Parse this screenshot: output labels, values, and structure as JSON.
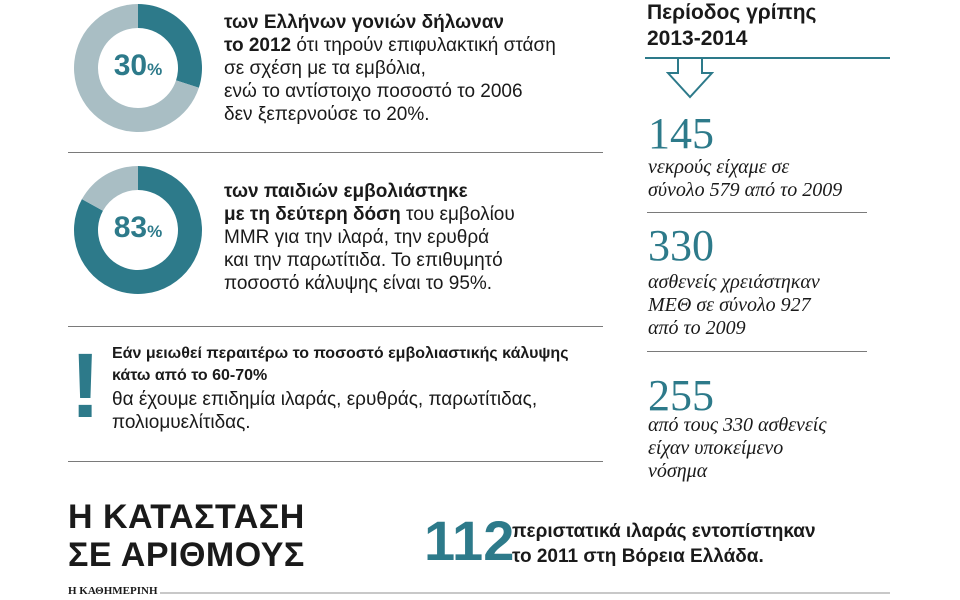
{
  "chart_data": [
    {
      "type": "pie",
      "variant": "donut",
      "values": [
        30,
        70
      ],
      "label": "30",
      "unit": "%",
      "colors": [
        "#2d7a8a",
        "#a9bec4"
      ]
    },
    {
      "type": "pie",
      "variant": "donut",
      "values": [
        83,
        17
      ],
      "label": "83",
      "unit": "%",
      "colors": [
        "#2d7a8a",
        "#a9bec4"
      ]
    }
  ],
  "stat1": {
    "bold": "των Ελλήνων γονιών δήλωναν",
    "bold2": "το 2012",
    "rest1": " ότι τηρούν επιφυλακτική στάση",
    "line3": "σε σχέση με τα εμβόλια,",
    "line4": "ενώ το αντίστοιχο ποσοστό το 2006",
    "line5": "δεν ξεπερνούσε το 20%."
  },
  "stat2": {
    "bold1": "των παιδιών εμβολιάστηκε",
    "bold2": "με τη δεύτερη δόση",
    "rest2": " του εμβολίου",
    "line3": "MMR για την ιλαρά, την ερυθρά",
    "line4": "και την παρωτίτιδα. Το επιθυμητό",
    "line5": "ποσοστό κάλυψης είναι το 95%."
  },
  "warning": {
    "mark": "!",
    "bold1": "Εάν μειωθεί περαιτέρω το ποσοστό εμβολιαστικής κάλυψης",
    "bold2": "κάτω από το 60-70%",
    "line3": "θα έχουμε επιδημία ιλαράς, ερυθράς, παρωτίτιδας,",
    "line4": "πολιομυελίτιδας."
  },
  "flu": {
    "title1": "Περίοδος γρίπης",
    "title2": "2013-2014",
    "items": [
      {
        "value": "145",
        "line1": "νεκρούς είχαμε σε",
        "line2": "σύνολο 579 από το 2009",
        "line3": ""
      },
      {
        "value": "330",
        "line1": "ασθενείς χρειάστηκαν",
        "line2": "ΜΕΘ σε σύνολο 927",
        "line3": "από το 2009"
      },
      {
        "value": "255",
        "line1": "από τους 330 ασθενείς",
        "line2": "είχαν υποκείμενο",
        "line3": "νόσημα"
      }
    ]
  },
  "headline": {
    "line1": "Η ΚΑΤΑΣΤΑΣΗ",
    "line2": "ΣΕ ΑΡΙΘΜΟΥΣ"
  },
  "measles": {
    "value": "112",
    "line1": "περιστατικά ιλαράς εντοπίστηκαν",
    "line2": "το 2011  στη Βόρεια Ελλάδα."
  },
  "brand": "Η ΚΑΘΗΜΕΡΙΝΗ",
  "colors": {
    "accent": "#2d7a8a",
    "light": "#a9bec4",
    "text": "#1a1a1a"
  }
}
